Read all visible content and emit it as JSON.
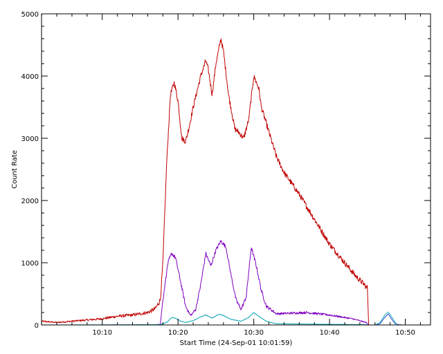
{
  "chart_data": {
    "type": "line",
    "title": "",
    "xlabel": "Start Time (24-Sep-01 10:01:59)",
    "ylabel": "Count Rate",
    "xlim": [
      "10:01:59",
      "10:53:20"
    ],
    "ylim": [
      0,
      5000
    ],
    "grid": false,
    "legend": "none",
    "x_ticks": [
      "10:10",
      "10:20",
      "10:30",
      "10:40",
      "10:50"
    ],
    "y_ticks": [
      0,
      1000,
      2000,
      3000,
      4000,
      5000
    ],
    "series": [
      {
        "color": "#c00000",
        "noise": 45,
        "x": [
          "10:01:59",
          "10:04:00",
          "10:06:00",
          "10:08:00",
          "10:10:00",
          "10:12:00",
          "10:14:00",
          "10:16:00",
          "10:17:00",
          "10:17:40",
          "10:18:00",
          "10:18:30",
          "10:19:00",
          "10:19:30",
          "10:20:00",
          "10:20:30",
          "10:21:00",
          "10:21:30",
          "10:22:00",
          "10:23:00",
          "10:23:40",
          "10:24:00",
          "10:24:30",
          "10:25:00",
          "10:25:40",
          "10:26:00",
          "10:26:40",
          "10:27:30",
          "10:28:00",
          "10:28:40",
          "10:29:20",
          "10:30:00",
          "10:30:40",
          "10:31:00",
          "10:32:00",
          "10:33:00",
          "10:34:00",
          "10:36:00",
          "10:38:00",
          "10:40:00",
          "10:42:00",
          "10:43:30",
          "10:44:40",
          "10:44:50",
          "10:45:00",
          "10:45:10"
        ],
        "y": [
          60,
          40,
          60,
          80,
          100,
          140,
          160,
          200,
          260,
          400,
          1000,
          2600,
          3700,
          3900,
          3600,
          3000,
          2950,
          3200,
          3500,
          4000,
          4250,
          4100,
          3700,
          4200,
          4600,
          4400,
          3700,
          3150,
          3100,
          3000,
          3300,
          4000,
          3800,
          3500,
          3100,
          2700,
          2450,
          2100,
          1700,
          1300,
          1000,
          780,
          640,
          600,
          600,
          0
        ]
      },
      {
        "color": "#7f00bf",
        "noise": 30,
        "x": [
          "10:01:59",
          "10:17:00",
          "10:17:40",
          "10:18:00",
          "10:18:40",
          "10:19:10",
          "10:19:40",
          "10:20:10",
          "10:21:00",
          "10:21:40",
          "10:22:20",
          "10:23:00",
          "10:23:40",
          "10:24:20",
          "10:25:00",
          "10:25:40",
          "10:26:20",
          "10:27:00",
          "10:27:40",
          "10:28:20",
          "10:29:00",
          "10:29:40",
          "10:30:20",
          "10:31:00",
          "10:31:40",
          "10:33:00",
          "10:35:00",
          "10:37:00",
          "10:40:00",
          "10:43:00",
          "10:44:50",
          "10:45:10"
        ],
        "y": [
          0,
          0,
          15,
          400,
          1000,
          1150,
          1080,
          800,
          300,
          150,
          250,
          650,
          1150,
          950,
          1200,
          1350,
          1250,
          800,
          400,
          250,
          450,
          1250,
          950,
          550,
          300,
          180,
          190,
          200,
          160,
          100,
          40,
          0
        ]
      },
      {
        "color": "#00a0b0",
        "noise": 8,
        "x": [
          "10:01:59",
          "10:17:40",
          "10:18:30",
          "10:19:10",
          "10:19:40",
          "10:20:20",
          "10:21:00",
          "10:22:00",
          "10:23:00",
          "10:23:40",
          "10:24:30",
          "10:25:20",
          "10:25:50",
          "10:27:00",
          "10:28:20",
          "10:29:20",
          "10:30:00",
          "10:30:40",
          "10:31:40",
          "10:33:00",
          "10:36:00",
          "10:40:00",
          "10:44:50",
          "10:45:10"
        ],
        "y": [
          0,
          5,
          40,
          120,
          110,
          60,
          40,
          70,
          130,
          160,
          110,
          170,
          160,
          90,
          60,
          120,
          200,
          140,
          60,
          20,
          15,
          10,
          5,
          0
        ]
      },
      {
        "color": "#1a3fc8",
        "noise": 0,
        "x": [
          "10:01:59",
          "10:46:00",
          "10:46:40",
          "10:47:20",
          "10:47:45",
          "10:48:10",
          "10:48:40",
          "10:49:10",
          "10:49:40",
          "10:50:00"
        ],
        "y": [
          0,
          0,
          20,
          130,
          180,
          100,
          20,
          5,
          0,
          0
        ]
      },
      {
        "color": "#2cb8c8",
        "noise": 0,
        "x": [
          "10:46:00",
          "10:46:40",
          "10:47:20",
          "10:47:45",
          "10:48:10",
          "10:48:40",
          "10:49:00"
        ],
        "y": [
          0,
          40,
          170,
          210,
          140,
          40,
          0
        ]
      }
    ]
  }
}
